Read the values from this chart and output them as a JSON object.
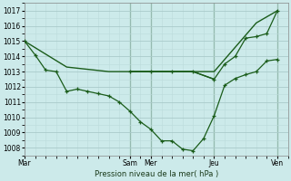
{
  "xlabel": "Pression niveau de la mer( hPa )",
  "background_color": "#cceaea",
  "grid_color_major": "#aacaca",
  "grid_color_minor": "#bbdada",
  "line_color": "#1a5c1a",
  "ylim": [
    1007.5,
    1017.5
  ],
  "yticks": [
    1008,
    1009,
    1010,
    1011,
    1012,
    1013,
    1014,
    1015,
    1016,
    1017
  ],
  "day_labels": [
    "Mar",
    "Sam",
    "Mer",
    "Jeu",
    "Ven"
  ],
  "day_x": [
    0,
    10,
    12,
    18,
    24
  ],
  "xlim": [
    0,
    25
  ],
  "series1_x": [
    0,
    1,
    2,
    3,
    4,
    5,
    6,
    7,
    8,
    9,
    10,
    11,
    12,
    13,
    14,
    15,
    16,
    17,
    18,
    19,
    20,
    21,
    22,
    23,
    24
  ],
  "series1_y": [
    1015.0,
    1014.1,
    1013.1,
    1013.0,
    1011.7,
    1011.85,
    1011.7,
    1011.55,
    1011.4,
    1011.0,
    1010.4,
    1009.7,
    1009.2,
    1008.45,
    1008.45,
    1007.9,
    1007.8,
    1008.6,
    1010.1,
    1012.1,
    1012.55,
    1012.8,
    1013.0,
    1013.7,
    1013.8
  ],
  "series2_x": [
    0,
    4,
    8,
    12,
    16,
    18,
    22,
    24
  ],
  "series2_y": [
    1015.0,
    1013.3,
    1013.0,
    1013.0,
    1013.0,
    1013.0,
    1016.2,
    1017.0
  ],
  "series3_x": [
    10,
    12,
    14,
    16,
    18,
    19,
    20,
    21,
    22,
    23,
    24
  ],
  "series3_y": [
    1013.0,
    1013.0,
    1013.0,
    1013.0,
    1012.5,
    1013.5,
    1014.0,
    1015.2,
    1015.3,
    1015.5,
    1017.0
  ],
  "series4_x": [
    10,
    12,
    14,
    16,
    18
  ],
  "series4_y": [
    1013.0,
    1013.0,
    1013.0,
    1013.0,
    1012.5
  ]
}
